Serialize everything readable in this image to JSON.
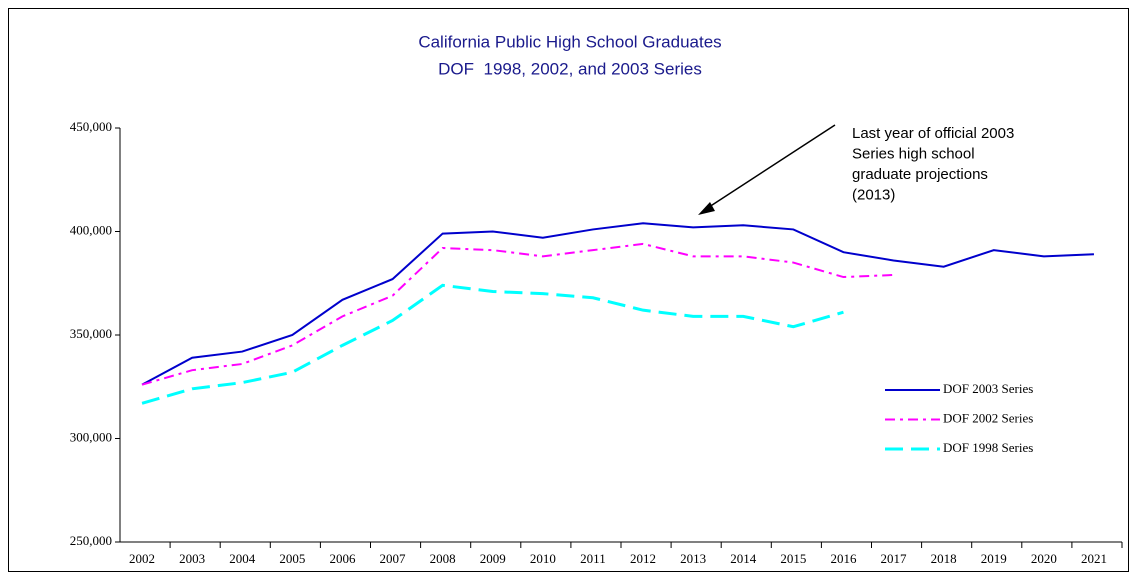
{
  "chart_data": {
    "type": "line",
    "title": "California Public High School Graduates",
    "subtitle": "DOF  1998, 2002, and 2003 Series",
    "annotation": [
      "Last year of official 2003",
      "Series high school",
      "graduate projections",
      "(2013)"
    ],
    "categories": [
      "2002",
      "2003",
      "2004",
      "2005",
      "2006",
      "2007",
      "2008",
      "2009",
      "2010",
      "2011",
      "2012",
      "2013",
      "2014",
      "2015",
      "2016",
      "2017",
      "2018",
      "2019",
      "2020",
      "2021"
    ],
    "series": [
      {
        "name": "DOF 2003 Series",
        "color": "#0000cc",
        "dash": "solid",
        "values": [
          326000,
          339000,
          342000,
          350000,
          367000,
          377000,
          399000,
          400000,
          397000,
          401000,
          404000,
          402000,
          403000,
          401000,
          390000,
          386000,
          383000,
          391000,
          388000,
          389000
        ]
      },
      {
        "name": "DOF 2002 Series",
        "color": "#ff00ff",
        "dash": "dashdot",
        "values": [
          326000,
          333000,
          336000,
          345000,
          359000,
          369000,
          392000,
          391000,
          388000,
          391000,
          394000,
          388000,
          388000,
          385000,
          378000,
          379000,
          null,
          null,
          null,
          null
        ]
      },
      {
        "name": "DOF 1998 Series",
        "color": "#00ffff",
        "dash": "longdash",
        "values": [
          317000,
          324000,
          327000,
          332000,
          345000,
          357000,
          374000,
          371000,
          370000,
          368000,
          362000,
          359000,
          359000,
          354000,
          361000,
          null,
          null,
          null,
          null,
          null
        ]
      }
    ],
    "ylim": [
      250000,
      450000
    ],
    "yticks": [
      {
        "value": 250000,
        "label": "250,000"
      },
      {
        "value": 300000,
        "label": "300,000"
      },
      {
        "value": 350000,
        "label": "350,000"
      },
      {
        "value": 400000,
        "label": "400,000"
      },
      {
        "value": 450000,
        "label": "450,000"
      }
    ],
    "grid": false,
    "legend": "right"
  }
}
